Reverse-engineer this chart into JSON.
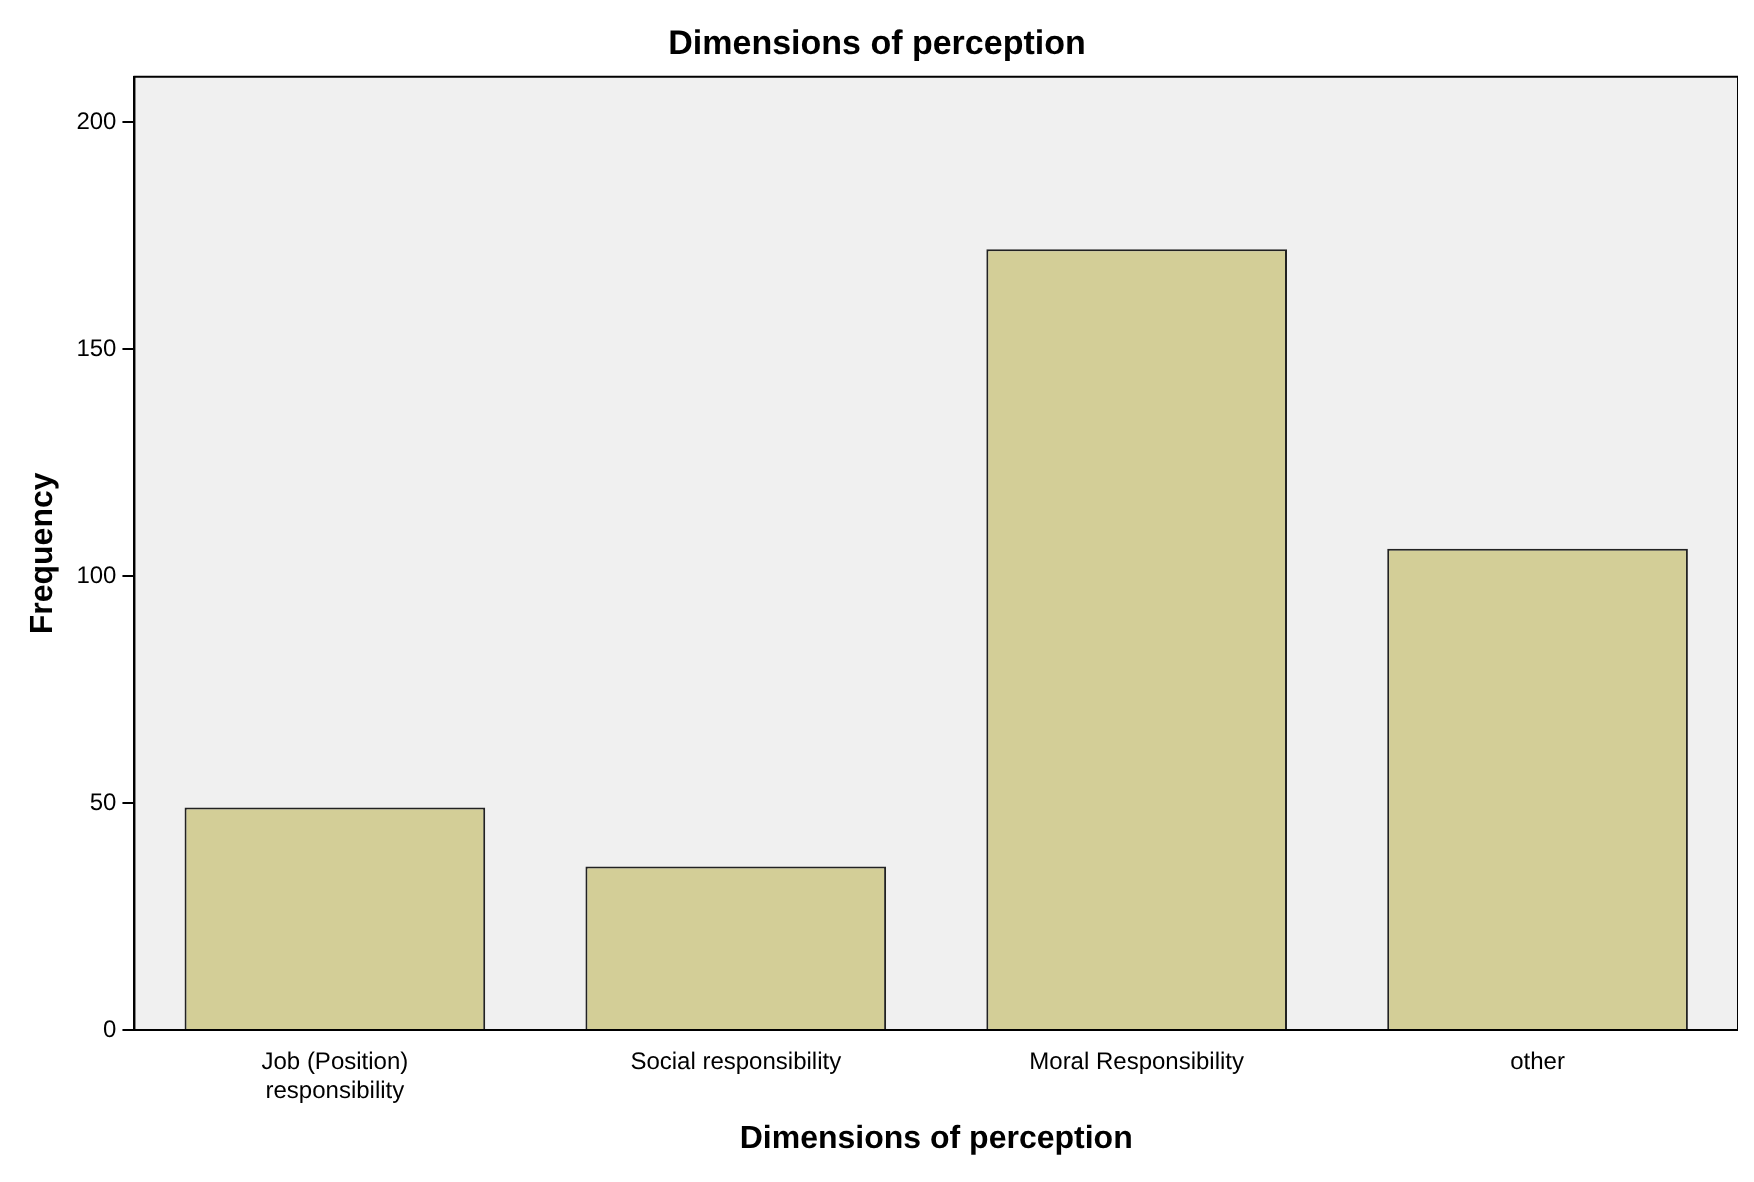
{
  "chart_data": {
    "type": "bar",
    "title": "Dimensions of perception",
    "xlabel": "Dimensions of perception",
    "ylabel": "Frequency",
    "categories": [
      "Job (Position) responsibility",
      "Social responsibility",
      "Moral Responsibility",
      "other"
    ],
    "values": [
      49,
      36,
      172,
      106
    ],
    "color": "#d3ce97",
    "ylim": [
      0,
      210
    ],
    "yticks": [
      0,
      50,
      100,
      150,
      200
    ],
    "grid": false,
    "legend": false
  }
}
